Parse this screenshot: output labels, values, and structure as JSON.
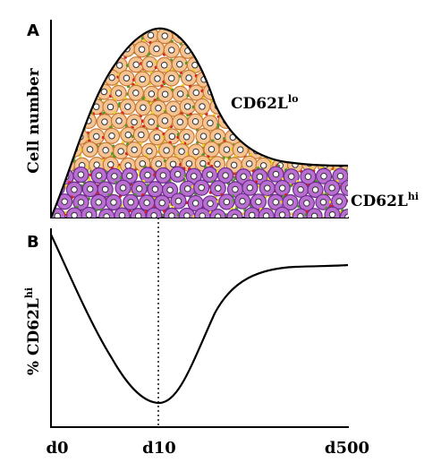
{
  "panel_a": {
    "letter": "A",
    "ylabel": "Cell number",
    "label_lo": {
      "main": "CD62L",
      "sup": "lo"
    },
    "label_hi": {
      "main": "CD62L",
      "sup": "hi"
    }
  },
  "panel_b": {
    "letter": "B",
    "ylabel": {
      "main": "% CD62L",
      "sup": "hi"
    }
  },
  "x_ticks": [
    "d0",
    "d10",
    "d500"
  ],
  "colors": {
    "cd62l_lo_cell": "#f6c493",
    "cd62l_hi_cell": "#b96fd1",
    "receptor_red": "#d82020",
    "receptor_yellow": "#e8d51d",
    "receptor_green": "#4a9a2a"
  }
}
